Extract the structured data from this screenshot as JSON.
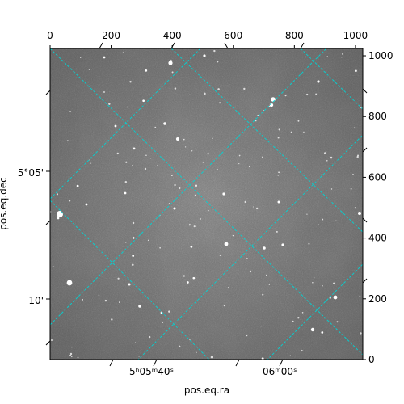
{
  "figure": {
    "xlabel": "pos.eq.ra",
    "ylabel": "pos.eq.dec"
  },
  "chart_data": {
    "type": "image",
    "pixel_axes": {
      "x_range": [
        0,
        1024
      ],
      "y_range": [
        0,
        1024
      ],
      "top_ticks": [
        0,
        200,
        400,
        600,
        800,
        1000
      ],
      "right_ticks": [
        0,
        200,
        400,
        600,
        800,
        1000
      ]
    },
    "world_axes": {
      "ra_label": "pos.eq.ra",
      "dec_label": "pos.eq.dec",
      "ra_ticks": [
        {
          "label_hm": "5ʰ05ᵐ",
          "label_s": "40ˢ"
        },
        {
          "label_hm": "06ᵐ",
          "label_s": "00ˢ"
        }
      ],
      "dec_ticks": [
        {
          "label": "5°05'"
        },
        {
          "label": "10'"
        }
      ]
    },
    "grid": true,
    "grid_color": "#00d5d5",
    "colormap": "gray"
  }
}
